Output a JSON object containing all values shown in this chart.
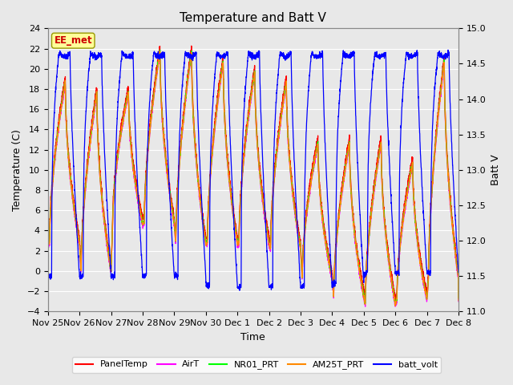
{
  "title": "Temperature and Batt V",
  "xlabel": "Time",
  "ylabel_left": "Temperature (C)",
  "ylabel_right": "Batt V",
  "annotation": "EE_met",
  "ylim_left": [
    -4,
    24
  ],
  "ylim_right": [
    11.0,
    15.0
  ],
  "yticks_left": [
    -4,
    -2,
    0,
    2,
    4,
    6,
    8,
    10,
    12,
    14,
    16,
    18,
    20,
    22,
    24
  ],
  "yticks_right": [
    11.0,
    11.5,
    12.0,
    12.5,
    13.0,
    13.5,
    14.0,
    14.5,
    15.0
  ],
  "x_tick_labels": [
    "Nov 25",
    "Nov 26",
    "Nov 27",
    "Nov 28",
    "Nov 29",
    "Nov 30",
    "Dec 1",
    "Dec 2",
    "Dec 3",
    "Dec 4",
    "Dec 5",
    "Dec 6",
    "Dec 7",
    "Dec 8"
  ],
  "fig_bg_color": "#e8e8e8",
  "plot_bg_color": "#e8e8e8",
  "grid_color": "#ffffff",
  "legend_items": [
    {
      "label": "PanelTemp",
      "color": "#ff0000"
    },
    {
      "label": "AirT",
      "color": "#ff00ff"
    },
    {
      "label": "NR01_PRT",
      "color": "#00ff00"
    },
    {
      "label": "AM25T_PRT",
      "color": "#ff8800"
    },
    {
      "label": "batt_volt",
      "color": "#0000ff"
    }
  ],
  "series_colors": {
    "PanelTemp": "#ff0000",
    "AirT": "#ff00ff",
    "NR01_PRT": "#00ff00",
    "AM25T_PRT": "#ff8800",
    "batt_volt": "#0000ff"
  },
  "annotation_text_color": "#cc0000",
  "annotation_bg": "#ffff99",
  "annotation_edge": "#999900",
  "day_peak_temps": [
    19,
    18,
    18,
    22,
    22,
    21,
    20,
    19,
    13,
    13,
    13,
    11,
    21
  ],
  "batt_night_min": [
    11.5,
    11.5,
    11.5,
    11.5,
    11.5,
    11.35,
    11.35,
    11.35,
    11.35,
    11.4,
    11.55,
    11.55,
    11.55
  ],
  "batt_day_max": [
    14.65,
    14.65,
    14.65,
    14.65,
    14.65,
    14.65,
    14.65,
    14.65,
    14.65,
    14.65,
    14.65,
    14.65,
    14.65
  ]
}
